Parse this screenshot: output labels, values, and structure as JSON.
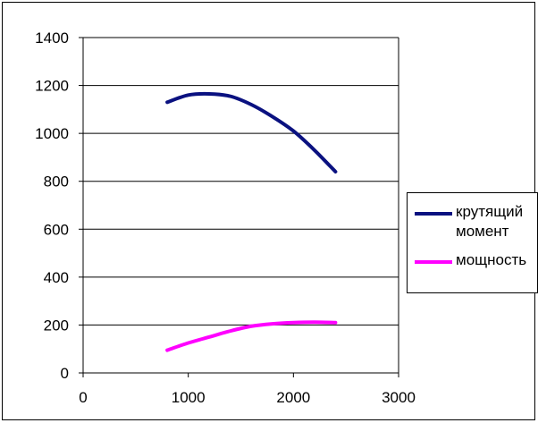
{
  "chart_data": {
    "type": "line",
    "xlim": [
      0,
      3000
    ],
    "ylim": [
      0,
      1400
    ],
    "x_ticks": [
      "0",
      "1000",
      "2000",
      "3000"
    ],
    "y_ticks": [
      "0",
      "200",
      "400",
      "600",
      "800",
      "1000",
      "1200",
      "1400"
    ],
    "grid": "horizontal",
    "legend_position": "right",
    "series": [
      {
        "name": "крутящий момент",
        "color": "#0a1180",
        "x": [
          800,
          1000,
          1200,
          1400,
          1600,
          1800,
          2000,
          2200,
          2400
        ],
        "y": [
          1130,
          1160,
          1165,
          1155,
          1120,
          1070,
          1010,
          930,
          840
        ]
      },
      {
        "name": "мощность",
        "color": "#ff00ff",
        "x": [
          800,
          1000,
          1200,
          1400,
          1600,
          1800,
          2000,
          2200,
          2400
        ],
        "y": [
          95,
          125,
          150,
          175,
          195,
          205,
          210,
          212,
          210
        ]
      }
    ]
  }
}
